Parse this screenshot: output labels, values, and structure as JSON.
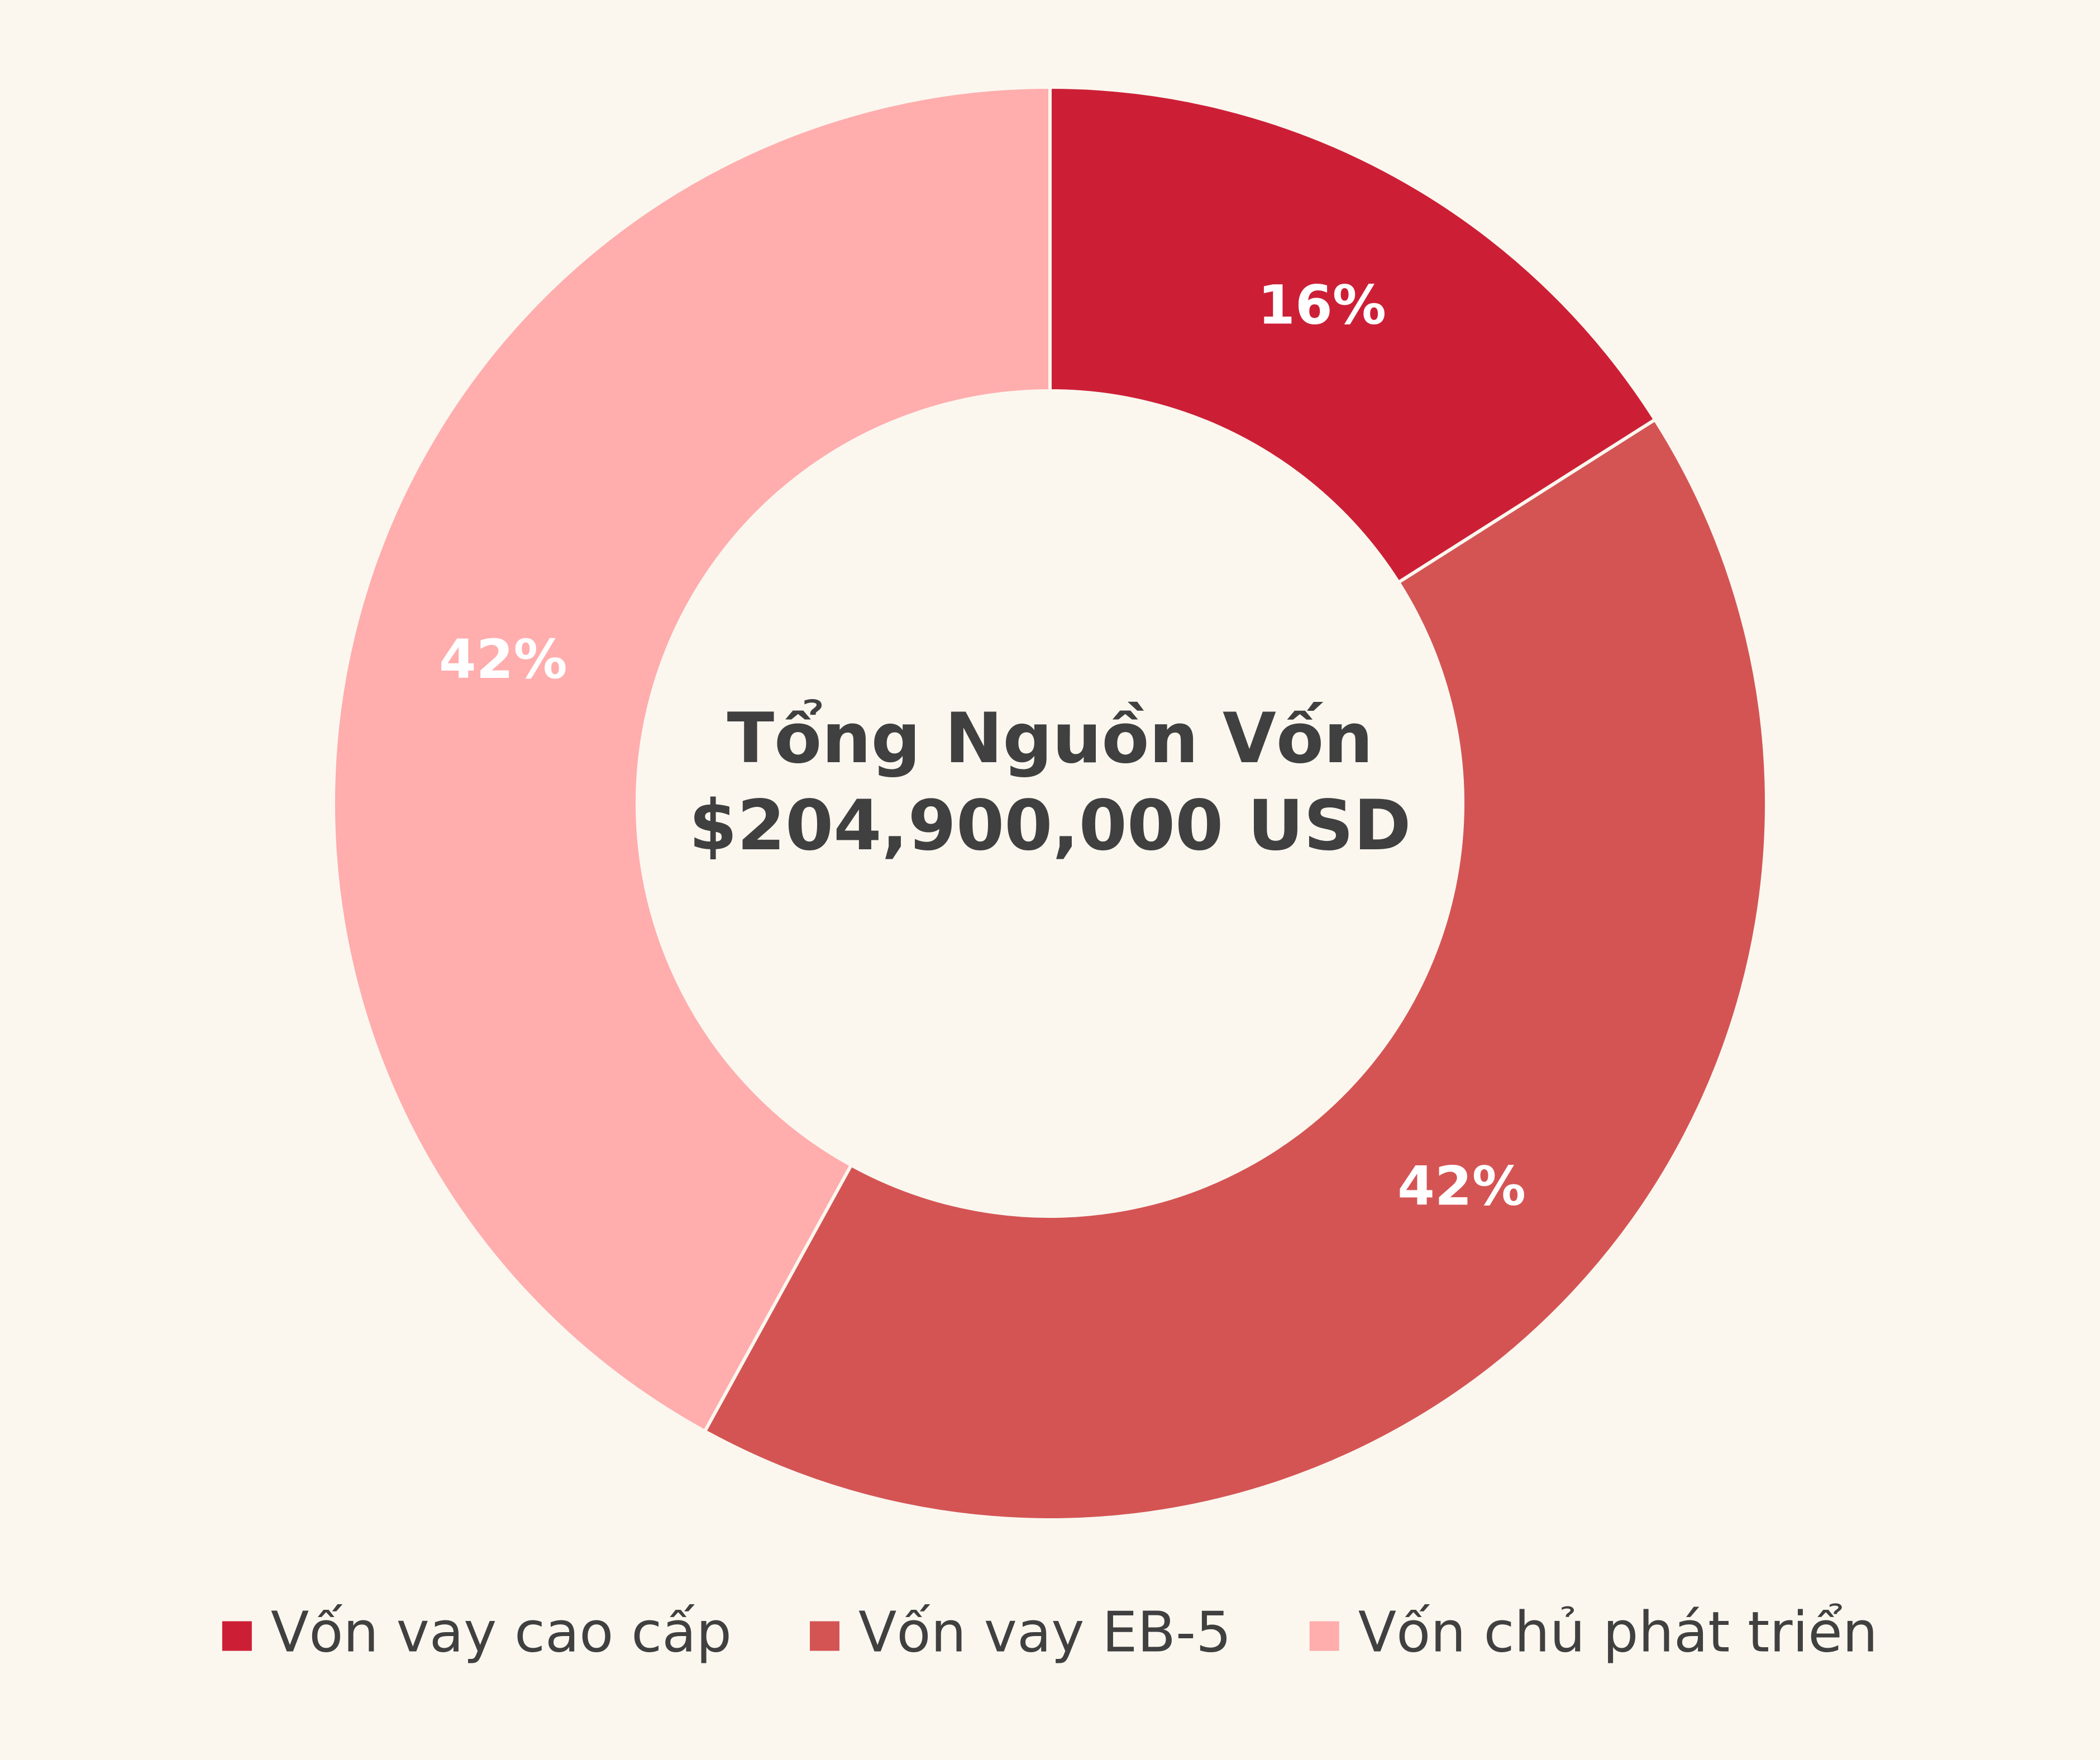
{
  "chart_data": {
    "type": "donut",
    "title": "Tổng Nguồn Vốn",
    "subtitle": "$204,900,000 USD",
    "categories": [
      "Vốn vay cao cấp",
      "Vốn vay EB-5",
      "Vốn chủ phát triển"
    ],
    "values": [
      16,
      42,
      42
    ],
    "value_labels": [
      "16%",
      "42%",
      "42%"
    ],
    "colors": [
      "#cc1f36",
      "#d45454",
      "#ffadad"
    ],
    "legend": "bottom"
  }
}
